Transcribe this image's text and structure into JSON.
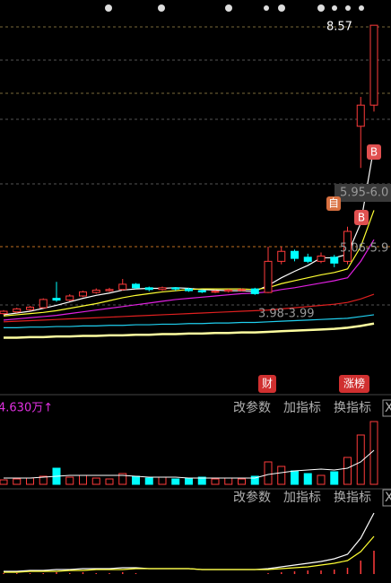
{
  "chart_data": [
    {
      "type": "candlestick",
      "up_color": "#ff3b3b",
      "down_color": "#00ffff",
      "ylim": [
        2.28,
        9.0
      ],
      "open": [
        3.66,
        3.69,
        3.73,
        3.76,
        3.92,
        3.89,
        3.96,
        4.02,
        4.05,
        4.07,
        4.16,
        4.1,
        4.07,
        4.1,
        4.08,
        4.05,
        4.03,
        4.04,
        4.06,
        4.08,
        4.02,
        4.55,
        4.72,
        4.62,
        4.55,
        4.62,
        4.55,
        6.85,
        7.21
      ],
      "high": [
        3.72,
        3.76,
        3.79,
        3.92,
        4.2,
        3.99,
        4.05,
        4.09,
        4.1,
        4.25,
        4.18,
        4.12,
        4.12,
        4.11,
        4.1,
        4.07,
        4.06,
        4.08,
        4.09,
        4.1,
        4.8,
        4.8,
        4.75,
        4.68,
        4.7,
        4.66,
        5.14,
        7.35,
        8.57
      ],
      "low": [
        3.64,
        3.67,
        3.71,
        3.75,
        3.86,
        3.87,
        3.94,
        4.0,
        4.03,
        4.05,
        4.08,
        4.04,
        4.05,
        4.05,
        4.03,
        4.01,
        4.01,
        4.02,
        4.04,
        3.98,
        4.01,
        4.5,
        4.55,
        4.52,
        4.52,
        4.45,
        4.5,
        6.14,
        7.1
      ],
      "close": [
        3.7,
        3.74,
        3.77,
        3.9,
        3.89,
        3.96,
        4.03,
        4.06,
        4.07,
        4.16,
        4.1,
        4.07,
        4.1,
        4.08,
        4.05,
        4.03,
        4.04,
        4.06,
        4.07,
        4.0,
        4.55,
        4.72,
        4.6,
        4.55,
        4.64,
        4.52,
        5.06,
        7.21,
        8.57
      ],
      "series": [
        {
          "color": "#ffffff",
          "values": [
            3.64,
            3.67,
            3.7,
            3.75,
            3.8,
            3.86,
            3.92,
            3.97,
            4.01,
            4.06,
            4.08,
            4.09,
            4.09,
            4.1,
            4.09,
            4.07,
            4.06,
            4.05,
            4.05,
            4.04,
            4.14,
            4.27,
            4.38,
            4.48,
            4.61,
            4.61,
            4.67,
            5.2,
            6.5
          ]
        },
        {
          "color": "#ffff33",
          "values": [
            3.62,
            3.64,
            3.66,
            3.68,
            3.71,
            3.75,
            3.79,
            3.83,
            3.88,
            3.93,
            3.97,
            4.0,
            4.03,
            4.05,
            4.07,
            4.08,
            4.08,
            4.08,
            4.08,
            4.07,
            4.1,
            4.17,
            4.22,
            4.27,
            4.32,
            4.36,
            4.42,
            4.8,
            5.42
          ]
        },
        {
          "color": "#e020e0",
          "values": [
            3.55,
            3.57,
            3.59,
            3.61,
            3.63,
            3.66,
            3.69,
            3.72,
            3.75,
            3.78,
            3.81,
            3.84,
            3.87,
            3.9,
            3.92,
            3.94,
            3.96,
            3.98,
            4.0,
            4.01,
            4.03,
            4.07,
            4.1,
            4.14,
            4.18,
            4.22,
            4.27,
            4.55,
            4.92
          ]
        },
        {
          "color": "#e02020",
          "values": [
            3.52,
            3.53,
            3.54,
            3.55,
            3.56,
            3.57,
            3.58,
            3.59,
            3.6,
            3.61,
            3.62,
            3.63,
            3.64,
            3.65,
            3.66,
            3.67,
            3.68,
            3.69,
            3.7,
            3.71,
            3.72,
            3.74,
            3.76,
            3.78,
            3.8,
            3.82,
            3.85,
            3.91,
            3.99
          ]
        },
        {
          "color": "#20d0f0",
          "values": [
            3.42,
            3.42,
            3.43,
            3.43,
            3.44,
            3.44,
            3.45,
            3.45,
            3.46,
            3.46,
            3.47,
            3.47,
            3.48,
            3.48,
            3.49,
            3.49,
            3.5,
            3.5,
            3.51,
            3.51,
            3.52,
            3.53,
            3.54,
            3.55,
            3.56,
            3.57,
            3.58,
            3.61,
            3.64
          ]
        },
        {
          "color": "#ffffa0",
          "values": [
            3.25,
            3.25,
            3.26,
            3.26,
            3.27,
            3.27,
            3.28,
            3.28,
            3.29,
            3.29,
            3.3,
            3.3,
            3.31,
            3.31,
            3.32,
            3.32,
            3.33,
            3.33,
            3.34,
            3.34,
            3.35,
            3.36,
            3.37,
            3.38,
            3.39,
            3.4,
            3.42,
            3.45,
            3.49
          ]
        }
      ],
      "price_labels": {
        "high": "8.57",
        "upper": "5.95-6.0",
        "middle": "5.06-5.9",
        "lower": "3.98-3.99"
      },
      "badges": {
        "buy_top": "B",
        "buy_mid": "B",
        "self": "自",
        "finance": "财",
        "limit_up": "涨榜"
      }
    },
    {
      "type": "bar",
      "label": "4.630万↑",
      "toolbar": {
        "params": "改参数",
        "add": "加指标",
        "switch": "换指标",
        "close": "X"
      },
      "ylim": [
        0,
        75
      ],
      "values": [
        5,
        6,
        7,
        9,
        18,
        8,
        10,
        7,
        6,
        12,
        9,
        7,
        8,
        6,
        7,
        8,
        6,
        7,
        6,
        9,
        25,
        20,
        15,
        12,
        10,
        14,
        30,
        55,
        70
      ],
      "series": [
        {
          "color": "#ffffff",
          "values": [
            7,
            7,
            7,
            8,
            9,
            10,
            10,
            10,
            10,
            10,
            9,
            8,
            8,
            8,
            7,
            7,
            7,
            7,
            7,
            7,
            11,
            13,
            15,
            16,
            17,
            16,
            18,
            25,
            38
          ]
        }
      ]
    },
    {
      "type": "line",
      "toolbar": {
        "params": "改参数",
        "add": "加指标",
        "switch": "换指标",
        "close": "X"
      },
      "ylim": [
        0,
        75
      ],
      "series": [
        {
          "color": "#ffffff",
          "values": [
            3,
            3,
            4,
            4,
            5,
            5,
            6,
            6,
            6,
            7,
            7,
            6,
            6,
            6,
            6,
            5,
            5,
            5,
            5,
            5,
            6,
            8,
            10,
            12,
            14,
            17,
            22,
            40,
            68
          ]
        },
        {
          "color": "#ffff33",
          "values": [
            2,
            2,
            3,
            3,
            3,
            4,
            4,
            5,
            5,
            5,
            6,
            6,
            6,
            6,
            6,
            5,
            5,
            5,
            5,
            5,
            5,
            6,
            7,
            8,
            10,
            12,
            15,
            25,
            42
          ]
        }
      ],
      "bars": {
        "color": "#ff3b3b",
        "values": [
          1,
          1,
          1,
          1,
          2,
          1,
          2,
          1,
          1,
          2,
          1,
          0,
          0,
          0,
          0,
          0,
          0,
          0,
          0,
          0,
          1,
          2,
          3,
          4,
          4,
          5,
          7,
          15,
          26
        ]
      }
    }
  ]
}
